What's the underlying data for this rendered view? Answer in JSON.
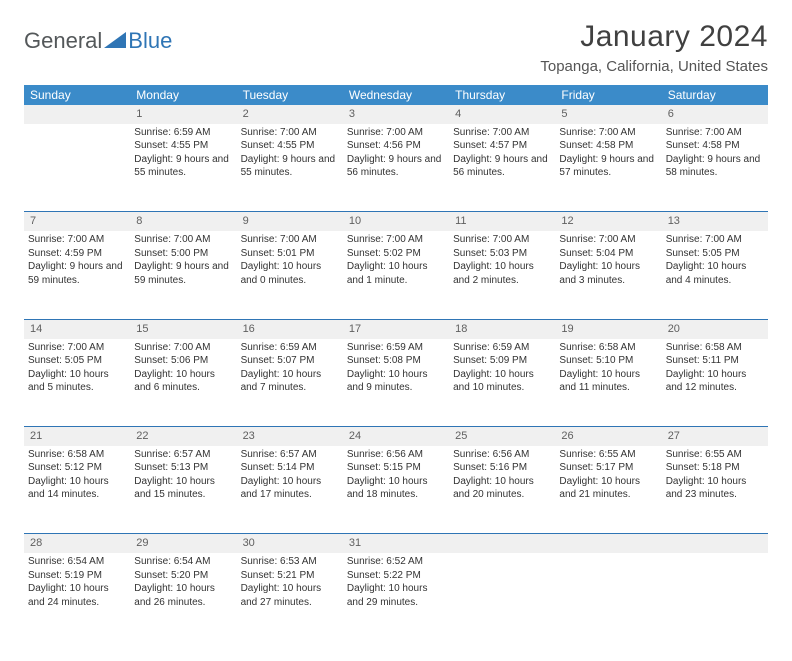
{
  "brand": {
    "part1": "General",
    "part2": "Blue"
  },
  "title": "January 2024",
  "location": "Topanga, California, United States",
  "colors": {
    "header_bg": "#3b8bc9",
    "header_text": "#ffffff",
    "daynum_bg": "#f0f0f0",
    "daynum_text": "#606060",
    "row_border": "#2f75b5",
    "body_text": "#333333",
    "title_text": "#404040",
    "brand_gray": "#54585a",
    "brand_blue": "#2f75b5",
    "page_bg": "#ffffff"
  },
  "typography": {
    "title_fontsize": 30,
    "location_fontsize": 15,
    "dayheader_fontsize": 12,
    "daynum_fontsize": 11,
    "cell_fontsize": 10
  },
  "day_headers": [
    "Sunday",
    "Monday",
    "Tuesday",
    "Wednesday",
    "Thursday",
    "Friday",
    "Saturday"
  ],
  "weeks": [
    {
      "nums": [
        "",
        "1",
        "2",
        "3",
        "4",
        "5",
        "6"
      ],
      "cells": [
        {
          "sunrise": "",
          "sunset": "",
          "daylight": ""
        },
        {
          "sunrise": "Sunrise: 6:59 AM",
          "sunset": "Sunset: 4:55 PM",
          "daylight": "Daylight: 9 hours and 55 minutes."
        },
        {
          "sunrise": "Sunrise: 7:00 AM",
          "sunset": "Sunset: 4:55 PM",
          "daylight": "Daylight: 9 hours and 55 minutes."
        },
        {
          "sunrise": "Sunrise: 7:00 AM",
          "sunset": "Sunset: 4:56 PM",
          "daylight": "Daylight: 9 hours and 56 minutes."
        },
        {
          "sunrise": "Sunrise: 7:00 AM",
          "sunset": "Sunset: 4:57 PM",
          "daylight": "Daylight: 9 hours and 56 minutes."
        },
        {
          "sunrise": "Sunrise: 7:00 AM",
          "sunset": "Sunset: 4:58 PM",
          "daylight": "Daylight: 9 hours and 57 minutes."
        },
        {
          "sunrise": "Sunrise: 7:00 AM",
          "sunset": "Sunset: 4:58 PM",
          "daylight": "Daylight: 9 hours and 58 minutes."
        }
      ]
    },
    {
      "nums": [
        "7",
        "8",
        "9",
        "10",
        "11",
        "12",
        "13"
      ],
      "cells": [
        {
          "sunrise": "Sunrise: 7:00 AM",
          "sunset": "Sunset: 4:59 PM",
          "daylight": "Daylight: 9 hours and 59 minutes."
        },
        {
          "sunrise": "Sunrise: 7:00 AM",
          "sunset": "Sunset: 5:00 PM",
          "daylight": "Daylight: 9 hours and 59 minutes."
        },
        {
          "sunrise": "Sunrise: 7:00 AM",
          "sunset": "Sunset: 5:01 PM",
          "daylight": "Daylight: 10 hours and 0 minutes."
        },
        {
          "sunrise": "Sunrise: 7:00 AM",
          "sunset": "Sunset: 5:02 PM",
          "daylight": "Daylight: 10 hours and 1 minute."
        },
        {
          "sunrise": "Sunrise: 7:00 AM",
          "sunset": "Sunset: 5:03 PM",
          "daylight": "Daylight: 10 hours and 2 minutes."
        },
        {
          "sunrise": "Sunrise: 7:00 AM",
          "sunset": "Sunset: 5:04 PM",
          "daylight": "Daylight: 10 hours and 3 minutes."
        },
        {
          "sunrise": "Sunrise: 7:00 AM",
          "sunset": "Sunset: 5:05 PM",
          "daylight": "Daylight: 10 hours and 4 minutes."
        }
      ]
    },
    {
      "nums": [
        "14",
        "15",
        "16",
        "17",
        "18",
        "19",
        "20"
      ],
      "cells": [
        {
          "sunrise": "Sunrise: 7:00 AM",
          "sunset": "Sunset: 5:05 PM",
          "daylight": "Daylight: 10 hours and 5 minutes."
        },
        {
          "sunrise": "Sunrise: 7:00 AM",
          "sunset": "Sunset: 5:06 PM",
          "daylight": "Daylight: 10 hours and 6 minutes."
        },
        {
          "sunrise": "Sunrise: 6:59 AM",
          "sunset": "Sunset: 5:07 PM",
          "daylight": "Daylight: 10 hours and 7 minutes."
        },
        {
          "sunrise": "Sunrise: 6:59 AM",
          "sunset": "Sunset: 5:08 PM",
          "daylight": "Daylight: 10 hours and 9 minutes."
        },
        {
          "sunrise": "Sunrise: 6:59 AM",
          "sunset": "Sunset: 5:09 PM",
          "daylight": "Daylight: 10 hours and 10 minutes."
        },
        {
          "sunrise": "Sunrise: 6:58 AM",
          "sunset": "Sunset: 5:10 PM",
          "daylight": "Daylight: 10 hours and 11 minutes."
        },
        {
          "sunrise": "Sunrise: 6:58 AM",
          "sunset": "Sunset: 5:11 PM",
          "daylight": "Daylight: 10 hours and 12 minutes."
        }
      ]
    },
    {
      "nums": [
        "21",
        "22",
        "23",
        "24",
        "25",
        "26",
        "27"
      ],
      "cells": [
        {
          "sunrise": "Sunrise: 6:58 AM",
          "sunset": "Sunset: 5:12 PM",
          "daylight": "Daylight: 10 hours and 14 minutes."
        },
        {
          "sunrise": "Sunrise: 6:57 AM",
          "sunset": "Sunset: 5:13 PM",
          "daylight": "Daylight: 10 hours and 15 minutes."
        },
        {
          "sunrise": "Sunrise: 6:57 AM",
          "sunset": "Sunset: 5:14 PM",
          "daylight": "Daylight: 10 hours and 17 minutes."
        },
        {
          "sunrise": "Sunrise: 6:56 AM",
          "sunset": "Sunset: 5:15 PM",
          "daylight": "Daylight: 10 hours and 18 minutes."
        },
        {
          "sunrise": "Sunrise: 6:56 AM",
          "sunset": "Sunset: 5:16 PM",
          "daylight": "Daylight: 10 hours and 20 minutes."
        },
        {
          "sunrise": "Sunrise: 6:55 AM",
          "sunset": "Sunset: 5:17 PM",
          "daylight": "Daylight: 10 hours and 21 minutes."
        },
        {
          "sunrise": "Sunrise: 6:55 AM",
          "sunset": "Sunset: 5:18 PM",
          "daylight": "Daylight: 10 hours and 23 minutes."
        }
      ]
    },
    {
      "nums": [
        "28",
        "29",
        "30",
        "31",
        "",
        "",
        ""
      ],
      "cells": [
        {
          "sunrise": "Sunrise: 6:54 AM",
          "sunset": "Sunset: 5:19 PM",
          "daylight": "Daylight: 10 hours and 24 minutes."
        },
        {
          "sunrise": "Sunrise: 6:54 AM",
          "sunset": "Sunset: 5:20 PM",
          "daylight": "Daylight: 10 hours and 26 minutes."
        },
        {
          "sunrise": "Sunrise: 6:53 AM",
          "sunset": "Sunset: 5:21 PM",
          "daylight": "Daylight: 10 hours and 27 minutes."
        },
        {
          "sunrise": "Sunrise: 6:52 AM",
          "sunset": "Sunset: 5:22 PM",
          "daylight": "Daylight: 10 hours and 29 minutes."
        },
        {
          "sunrise": "",
          "sunset": "",
          "daylight": ""
        },
        {
          "sunrise": "",
          "sunset": "",
          "daylight": ""
        },
        {
          "sunrise": "",
          "sunset": "",
          "daylight": ""
        }
      ]
    }
  ]
}
